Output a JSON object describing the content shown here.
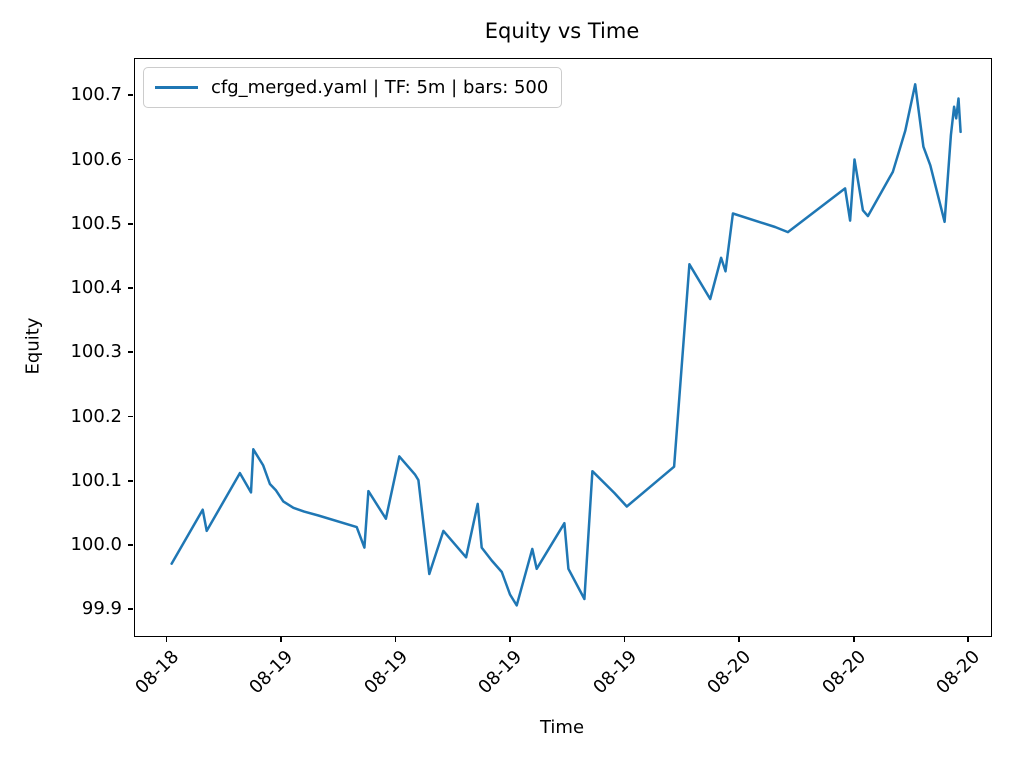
{
  "figure": {
    "title": "Equity vs Time"
  },
  "axes": {
    "xlabel": "Time",
    "ylabel": "Equity"
  },
  "legend": {
    "label": "cfg_merged.yaml | TF: 5m | bars: 500",
    "position": "upper left"
  },
  "colors": {
    "line": "#1f77b4",
    "spine": "#000000",
    "text": "#000000",
    "legend_border": "#cccccc",
    "background": "#ffffff"
  },
  "chart_data": {
    "type": "line",
    "title": "Equity vs Time",
    "xlabel": "Time",
    "ylabel": "Equity",
    "grid": false,
    "legend_position": "upper left",
    "x_unit": "hours since 08-18 18:00",
    "xlim": [
      -1.71,
      43.14
    ],
    "ylim": [
      99.86,
      100.758
    ],
    "yticks": [
      99.9,
      100.0,
      100.1,
      100.2,
      100.3,
      100.4,
      100.5,
      100.6,
      100.7
    ],
    "xticks": [
      {
        "pos": 0,
        "label": "08-18"
      },
      {
        "pos": 6,
        "label": "08-19"
      },
      {
        "pos": 12,
        "label": "08-19"
      },
      {
        "pos": 18,
        "label": "08-19"
      },
      {
        "pos": 24,
        "label": "08-19"
      },
      {
        "pos": 30,
        "label": "08-20"
      },
      {
        "pos": 36,
        "label": "08-20"
      },
      {
        "pos": 42,
        "label": "08-20"
      }
    ],
    "series": [
      {
        "name": "cfg_merged.yaml | TF: 5m | bars: 500",
        "color": "#1f77b4",
        "line_width": 2.5,
        "points": [
          [
            0.26,
            99.971
          ],
          [
            1.89,
            100.055
          ],
          [
            2.1,
            100.022
          ],
          [
            3.84,
            100.112
          ],
          [
            4.42,
            100.082
          ],
          [
            4.54,
            100.149
          ],
          [
            5.06,
            100.124
          ],
          [
            5.41,
            100.095
          ],
          [
            5.73,
            100.085
          ],
          [
            6.11,
            100.068
          ],
          [
            6.64,
            100.058
          ],
          [
            7.2,
            100.052
          ],
          [
            7.95,
            100.046
          ],
          [
            9.96,
            100.028
          ],
          [
            10.36,
            99.996
          ],
          [
            10.57,
            100.084
          ],
          [
            11.49,
            100.041
          ],
          [
            12.19,
            100.138
          ],
          [
            13.01,
            100.11
          ],
          [
            13.19,
            100.101
          ],
          [
            13.76,
            99.955
          ],
          [
            14.5,
            100.022
          ],
          [
            15.69,
            99.981
          ],
          [
            16.3,
            100.064
          ],
          [
            16.51,
            99.996
          ],
          [
            17.03,
            99.976
          ],
          [
            17.56,
            99.958
          ],
          [
            17.99,
            99.923
          ],
          [
            18.34,
            99.906
          ],
          [
            19.16,
            99.994
          ],
          [
            19.39,
            99.963
          ],
          [
            20.84,
            100.034
          ],
          [
            21.05,
            99.963
          ],
          [
            21.89,
            99.916
          ],
          [
            22.31,
            100.115
          ],
          [
            23.46,
            100.081
          ],
          [
            24.11,
            100.06
          ],
          [
            26.59,
            100.122
          ],
          [
            27.39,
            100.437
          ],
          [
            28.48,
            100.383
          ],
          [
            29.05,
            100.447
          ],
          [
            29.28,
            100.426
          ],
          [
            29.67,
            100.516
          ],
          [
            31.88,
            100.495
          ],
          [
            32.55,
            100.487
          ],
          [
            35.55,
            100.555
          ],
          [
            35.81,
            100.505
          ],
          [
            36.04,
            100.6
          ],
          [
            36.48,
            100.521
          ],
          [
            36.74,
            100.512
          ],
          [
            38.05,
            100.581
          ],
          [
            38.7,
            100.645
          ],
          [
            39.22,
            100.717
          ],
          [
            39.65,
            100.62
          ],
          [
            40.01,
            100.591
          ],
          [
            40.76,
            100.503
          ],
          [
            41.09,
            100.638
          ],
          [
            41.26,
            100.682
          ],
          [
            41.37,
            100.664
          ],
          [
            41.49,
            100.695
          ],
          [
            41.6,
            100.643
          ]
        ]
      }
    ]
  }
}
